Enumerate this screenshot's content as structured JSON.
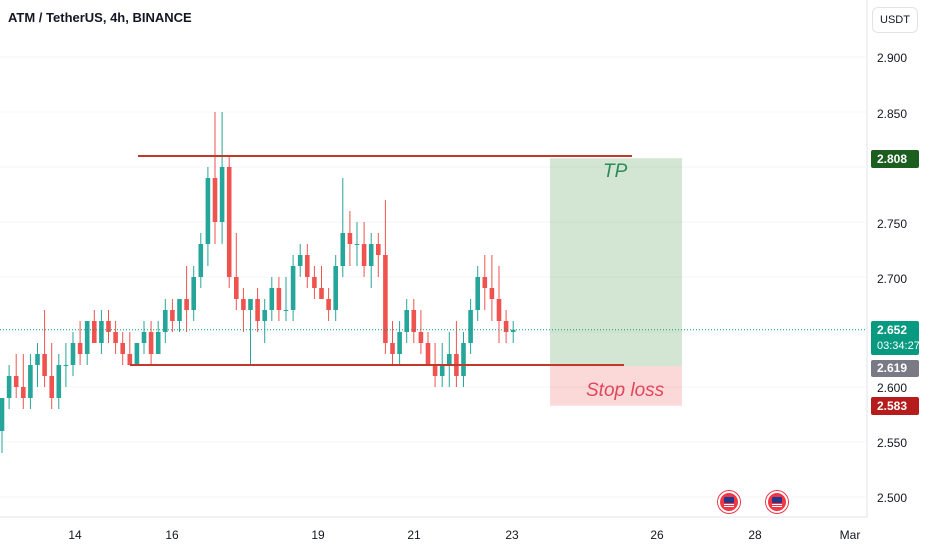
{
  "symbol_title": "ATM / TetherUS, 4h, BINANCE",
  "currency_button": "USDT",
  "y_axis": {
    "ticks": [
      "2.900",
      "2.850",
      "2.750",
      "2.700",
      "2.600",
      "2.550",
      "2.500"
    ]
  },
  "x_axis": {
    "ticks": [
      "14",
      "16",
      "19",
      "21",
      "23",
      "26",
      "28",
      "Mar"
    ]
  },
  "price_badges": {
    "take_profit": "2.808",
    "current_price": "2.652",
    "countdown": "03:34:27",
    "entry": "2.619",
    "stop": "2.583"
  },
  "annotations": {
    "tp_label": "TP",
    "stop_label": "Stop loss"
  },
  "event_icons": [
    "us-flag-icon",
    "us-flag-icon"
  ],
  "colors": {
    "up": "#26a69a",
    "down": "#ef5350",
    "level_line": "#c0392b",
    "tp_zone": "rgba(56,142,60,0.22)",
    "sl_zone": "rgba(239,83,80,0.22)",
    "current_badge": "#089981",
    "tp_badge": "#1b5e20",
    "entry_badge": "#787b86",
    "stop_badge": "#b71c1c"
  },
  "chart_data": {
    "type": "candlestick",
    "title": "ATM / TetherUS, 4h, BINANCE",
    "y_unit": "USDT",
    "ylim": [
      2.47,
      2.99
    ],
    "x_labels": [
      "14",
      "16",
      "19",
      "21",
      "23",
      "26",
      "28",
      "Mar"
    ],
    "levels": {
      "take_profit": 2.808,
      "entry": 2.619,
      "stop": 2.583,
      "current": 2.652,
      "resistance": 2.81,
      "support": 2.62
    },
    "candles": [
      [
        2.56,
        2.59,
        2.54,
        2.59
      ],
      [
        2.59,
        2.62,
        2.58,
        2.61
      ],
      [
        2.61,
        2.63,
        2.59,
        2.6
      ],
      [
        2.6,
        2.63,
        2.58,
        2.59
      ],
      [
        2.59,
        2.63,
        2.58,
        2.62
      ],
      [
        2.62,
        2.64,
        2.6,
        2.63
      ],
      [
        2.63,
        2.67,
        2.6,
        2.61
      ],
      [
        2.61,
        2.64,
        2.58,
        2.59
      ],
      [
        2.59,
        2.63,
        2.58,
        2.62
      ],
      [
        2.62,
        2.64,
        2.6,
        2.62
      ],
      [
        2.62,
        2.65,
        2.61,
        2.64
      ],
      [
        2.64,
        2.66,
        2.62,
        2.63
      ],
      [
        2.63,
        2.66,
        2.62,
        2.66
      ],
      [
        2.66,
        2.67,
        2.64,
        2.64
      ],
      [
        2.64,
        2.67,
        2.63,
        2.66
      ],
      [
        2.66,
        2.67,
        2.64,
        2.65
      ],
      [
        2.65,
        2.66,
        2.63,
        2.64
      ],
      [
        2.64,
        2.65,
        2.62,
        2.63
      ],
      [
        2.63,
        2.65,
        2.62,
        2.62
      ],
      [
        2.62,
        2.64,
        2.62,
        2.64
      ],
      [
        2.64,
        2.66,
        2.63,
        2.65
      ],
      [
        2.65,
        2.66,
        2.62,
        2.63
      ],
      [
        2.63,
        2.66,
        2.63,
        2.65
      ],
      [
        2.65,
        2.68,
        2.64,
        2.67
      ],
      [
        2.67,
        2.68,
        2.65,
        2.66
      ],
      [
        2.66,
        2.68,
        2.65,
        2.68
      ],
      [
        2.68,
        2.71,
        2.65,
        2.67
      ],
      [
        2.67,
        2.71,
        2.66,
        2.7
      ],
      [
        2.7,
        2.74,
        2.69,
        2.73
      ],
      [
        2.73,
        2.8,
        2.71,
        2.79
      ],
      [
        2.79,
        2.85,
        2.73,
        2.75
      ],
      [
        2.75,
        2.85,
        2.73,
        2.8
      ],
      [
        2.8,
        2.81,
        2.69,
        2.7
      ],
      [
        2.7,
        2.74,
        2.67,
        2.68
      ],
      [
        2.68,
        2.69,
        2.65,
        2.67
      ],
      [
        2.67,
        2.68,
        2.62,
        2.68
      ],
      [
        2.68,
        2.69,
        2.65,
        2.66
      ],
      [
        2.66,
        2.68,
        2.64,
        2.67
      ],
      [
        2.67,
        2.7,
        2.66,
        2.69
      ],
      [
        2.69,
        2.7,
        2.66,
        2.67
      ],
      [
        2.67,
        2.7,
        2.66,
        2.67
      ],
      [
        2.67,
        2.72,
        2.66,
        2.71
      ],
      [
        2.71,
        2.73,
        2.7,
        2.72
      ],
      [
        2.72,
        2.73,
        2.69,
        2.7
      ],
      [
        2.7,
        2.71,
        2.68,
        2.69
      ],
      [
        2.69,
        2.71,
        2.68,
        2.68
      ],
      [
        2.68,
        2.69,
        2.66,
        2.67
      ],
      [
        2.67,
        2.72,
        2.66,
        2.71
      ],
      [
        2.71,
        2.79,
        2.7,
        2.74
      ],
      [
        2.74,
        2.76,
        2.71,
        2.73
      ],
      [
        2.73,
        2.75,
        2.71,
        2.73
      ],
      [
        2.73,
        2.75,
        2.7,
        2.71
      ],
      [
        2.71,
        2.74,
        2.69,
        2.73
      ],
      [
        2.73,
        2.74,
        2.7,
        2.72
      ],
      [
        2.72,
        2.77,
        2.63,
        2.64
      ],
      [
        2.64,
        2.66,
        2.62,
        2.63
      ],
      [
        2.63,
        2.66,
        2.62,
        2.65
      ],
      [
        2.65,
        2.68,
        2.64,
        2.67
      ],
      [
        2.67,
        2.68,
        2.64,
        2.65
      ],
      [
        2.65,
        2.67,
        2.63,
        2.64
      ],
      [
        2.64,
        2.65,
        2.62,
        2.62
      ],
      [
        2.62,
        2.64,
        2.6,
        2.61
      ],
      [
        2.61,
        2.64,
        2.6,
        2.62
      ],
      [
        2.62,
        2.65,
        2.6,
        2.63
      ],
      [
        2.63,
        2.66,
        2.6,
        2.61
      ],
      [
        2.61,
        2.65,
        2.6,
        2.64
      ],
      [
        2.64,
        2.68,
        2.63,
        2.67
      ],
      [
        2.67,
        2.71,
        2.66,
        2.7
      ],
      [
        2.7,
        2.72,
        2.67,
        2.69
      ],
      [
        2.69,
        2.72,
        2.66,
        2.68
      ],
      [
        2.68,
        2.71,
        2.64,
        2.66
      ],
      [
        2.66,
        2.67,
        2.64,
        2.65
      ],
      [
        2.65,
        2.66,
        2.64,
        2.652
      ]
    ]
  }
}
